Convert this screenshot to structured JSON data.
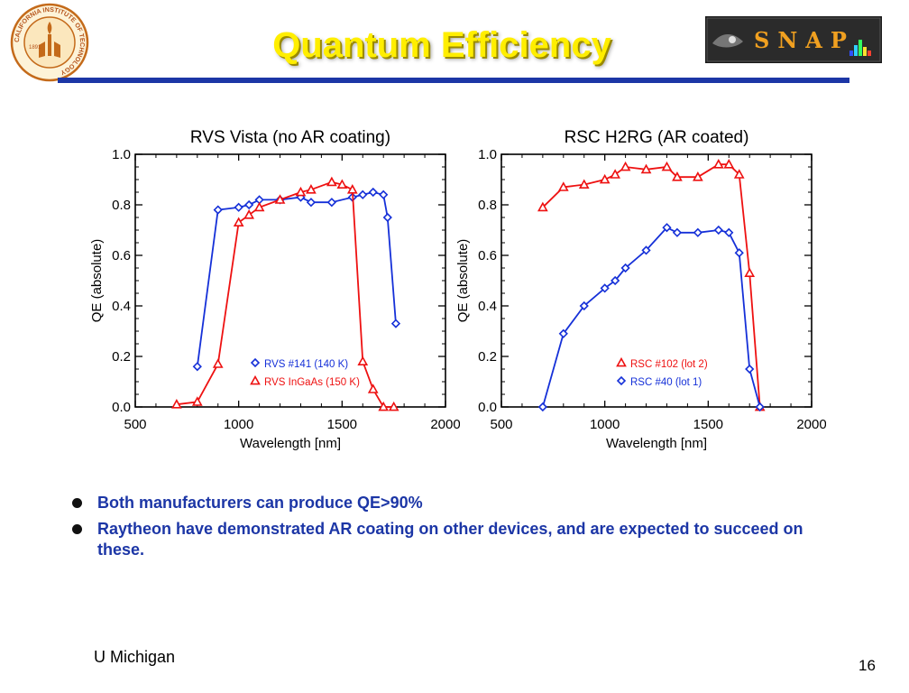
{
  "slide": {
    "title": "Quantum Efficiency",
    "logo_left": {
      "icon": "caltech-seal-icon",
      "ring_text": "CALIFORNIA INSTITUTE OF TECHNOLOGY",
      "year": "1891"
    },
    "logo_right": {
      "icon": "snap-logo-icon",
      "text": "SNAP"
    },
    "bullets": [
      "Both manufacturers can produce QE>90%",
      "Raytheon have demonstrated AR coating on other devices, and are expected to succeed on these."
    ],
    "footer_left": "U Michigan",
    "page_number": "16"
  },
  "colors": {
    "title": "#ffee00",
    "rule": "#1c36a6",
    "bullet_text": "#1c36a6",
    "series_red": "#ee1111",
    "series_blue": "#1530d8"
  },
  "chart_data": [
    {
      "type": "line",
      "title": "RVS Vista (no AR coating)",
      "xlabel": "Wavelength [nm]",
      "ylabel": "QE (absolute)",
      "xlim": [
        500,
        2000
      ],
      "ylim": [
        0,
        1.0
      ],
      "xticks": [
        "500",
        "1000",
        "1500",
        "2000"
      ],
      "yticks": [
        "0.0",
        "0.2",
        "0.4",
        "0.6",
        "0.8",
        "1.0"
      ],
      "grid": false,
      "legend": "bottom-center",
      "series": [
        {
          "name": "RVS #141 (140 K)",
          "marker": "diamond",
          "color": "#1530d8",
          "x": [
            800,
            900,
            1000,
            1050,
            1100,
            1200,
            1300,
            1350,
            1450,
            1550,
            1600,
            1650,
            1700,
            1720,
            1760
          ],
          "y": [
            0.16,
            0.78,
            0.79,
            0.8,
            0.82,
            0.82,
            0.83,
            0.81,
            0.81,
            0.83,
            0.84,
            0.85,
            0.84,
            0.75,
            0.33
          ]
        },
        {
          "name": "RVS InGaAs (150 K)",
          "marker": "triangle",
          "color": "#ee1111",
          "x": [
            700,
            800,
            900,
            1000,
            1050,
            1100,
            1200,
            1300,
            1350,
            1450,
            1500,
            1550,
            1600,
            1650,
            1700,
            1750
          ],
          "y": [
            0.01,
            0.02,
            0.17,
            0.73,
            0.76,
            0.79,
            0.82,
            0.85,
            0.86,
            0.89,
            0.88,
            0.86,
            0.18,
            0.07,
            0.0,
            0.0
          ]
        }
      ]
    },
    {
      "type": "line",
      "title": "RSC H2RG (AR coated)",
      "xlabel": "Wavelength [nm]",
      "ylabel": "QE (absolute)",
      "xlim": [
        500,
        2000
      ],
      "ylim": [
        0,
        1.0
      ],
      "xticks": [
        "500",
        "1000",
        "1500",
        "2000"
      ],
      "yticks": [
        "0.0",
        "0.2",
        "0.4",
        "0.6",
        "0.8",
        "1.0"
      ],
      "grid": false,
      "legend": "bottom-center",
      "series": [
        {
          "name": "RSC #102 (lot 2)",
          "marker": "triangle",
          "color": "#ee1111",
          "x": [
            700,
            800,
            900,
            1000,
            1050,
            1100,
            1200,
            1300,
            1350,
            1450,
            1550,
            1600,
            1650,
            1700,
            1750
          ],
          "y": [
            0.79,
            0.87,
            0.88,
            0.9,
            0.92,
            0.95,
            0.94,
            0.95,
            0.91,
            0.91,
            0.96,
            0.96,
            0.92,
            0.53,
            0.0
          ]
        },
        {
          "name": "RSC #40 (lot 1)",
          "marker": "diamond",
          "color": "#1530d8",
          "x": [
            700,
            800,
            900,
            1000,
            1050,
            1100,
            1200,
            1300,
            1350,
            1450,
            1550,
            1600,
            1650,
            1700,
            1750
          ],
          "y": [
            0.0,
            0.29,
            0.4,
            0.47,
            0.5,
            0.55,
            0.62,
            0.71,
            0.69,
            0.69,
            0.7,
            0.69,
            0.61,
            0.15,
            0.0
          ]
        }
      ]
    }
  ]
}
